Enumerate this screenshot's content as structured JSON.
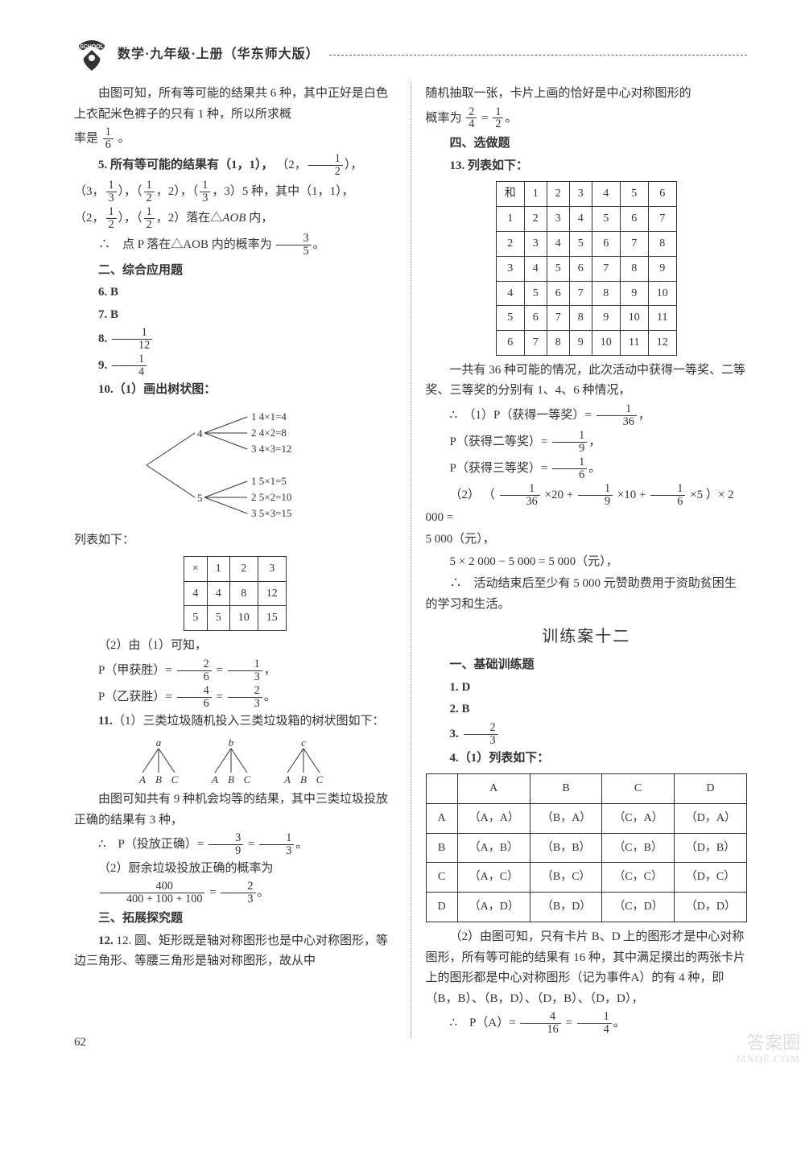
{
  "header": {
    "title": "数学·九年级·上册（华东师大版）"
  },
  "page_number": "62",
  "watermark": {
    "line1": "答案圈",
    "line2": "MXQE.COM"
  },
  "left": {
    "intro1": "由图可知，所有等可能的结果共 6 种，其中正好是白色上衣配米色裤子的只有 1 种，所以所求概",
    "intro2_prefix": "率是",
    "intro2_frac": {
      "n": "1",
      "d": "6"
    },
    "intro2_suffix": "。",
    "q5a": "5. 所有等可能的结果有（1，1），",
    "q5b_pairs": "（3，1/3），（1/2，2），（1/3，3）5 种，其中（1，1），",
    "q5c": "（2，1/2），（1/2，2）落在△AOB 内，",
    "q5_conclude_prefix": "∴　点 P 落在△AOB 内的概率为",
    "q5_conclude_frac": {
      "n": "3",
      "d": "5"
    },
    "sec2": "二、综合应用题",
    "q6": "6. B",
    "q7": "7. B",
    "q8_label": "8. ",
    "q8_frac": {
      "n": "1",
      "d": "12"
    },
    "q9_label": "9. ",
    "q9_frac": {
      "n": "1",
      "d": "4"
    },
    "q10": "10.（1）画出树状图：",
    "tree1": {
      "branch1": {
        "root": "4",
        "leaves": [
          "1  4×1=4",
          "2  4×2=8",
          "3  4×3=12"
        ]
      },
      "branch2": {
        "root": "5",
        "leaves": [
          "1  5×1=5",
          "2  5×2=10",
          "3  5×3=15"
        ]
      }
    },
    "tbl1_caption": "列表如下：",
    "tbl1": {
      "headers": [
        "×",
        "1",
        "2",
        "3"
      ],
      "rows": [
        [
          "4",
          "4",
          "8",
          "12"
        ],
        [
          "5",
          "5",
          "10",
          "15"
        ]
      ]
    },
    "q10_2": "（2）由（1）可知，",
    "p_jia_prefix": "P（甲获胜）= ",
    "p_jia_f1": {
      "n": "2",
      "d": "6"
    },
    "p_jia_f2": {
      "n": "1",
      "d": "3"
    },
    "p_yi_prefix": "P（乙获胜）= ",
    "p_yi_f1": {
      "n": "4",
      "d": "6"
    },
    "p_yi_f2": {
      "n": "2",
      "d": "3"
    },
    "q11a": "11.（1）三类垃圾随机投入三类垃圾箱的树状图如下：",
    "tree2": {
      "roots": [
        "a",
        "b",
        "c"
      ],
      "leaves": [
        "A",
        "B",
        "C"
      ]
    },
    "q11b": "由图可知共有 9 种机会均等的结果，其中三类垃圾投放正确的结果有 3 种，",
    "q11c_prefix": "∴　P（投放正确）= ",
    "q11c_f1": {
      "n": "3",
      "d": "9"
    },
    "q11c_f2": {
      "n": "1",
      "d": "3"
    },
    "q11d": "（2）厨余垃圾投放正确的概率为",
    "q11e_f1": {
      "n": "400",
      "d": "400 + 100 + 100"
    },
    "q11e_f2": {
      "n": "2",
      "d": "3"
    },
    "sec3": "三、拓展探究题",
    "q12": "12. 圆、矩形既是轴对称图形也是中心对称图形，等边三角形、等腰三角形是轴对称图形，故从中"
  },
  "right": {
    "p1a": "随机抽取一张，卡片上画的恰好是中心对称图形的",
    "p1b_prefix": "概率为",
    "p1b_f1": {
      "n": "2",
      "d": "4"
    },
    "p1b_f2": {
      "n": "1",
      "d": "2"
    },
    "sec4": "四、选做题",
    "q13": "13. 列表如下：",
    "tbl2": {
      "headers": [
        "和",
        "1",
        "2",
        "3",
        "4",
        "5",
        "6"
      ],
      "rows": [
        [
          "1",
          "2",
          "3",
          "4",
          "5",
          "6",
          "7"
        ],
        [
          "2",
          "3",
          "4",
          "5",
          "6",
          "7",
          "8"
        ],
        [
          "3",
          "4",
          "5",
          "6",
          "7",
          "8",
          "9"
        ],
        [
          "4",
          "5",
          "6",
          "7",
          "8",
          "9",
          "10"
        ],
        [
          "5",
          "6",
          "7",
          "8",
          "9",
          "10",
          "11"
        ],
        [
          "6",
          "7",
          "8",
          "9",
          "10",
          "11",
          "12"
        ]
      ]
    },
    "p2": "一共有 36 种可能的情况，此次活动中获得一等奖、二等奖、三等奖的分别有 1、4、6 种情况，",
    "p3a_prefix": "∴　（1）P（获得一等奖）= ",
    "p3a_frac": {
      "n": "1",
      "d": "36"
    },
    "p3b_prefix": "P（获得二等奖）= ",
    "p3b_frac": {
      "n": "1",
      "d": "9"
    },
    "p3c_prefix": "P（获得三等奖）= ",
    "p3c_frac": {
      "n": "1",
      "d": "6"
    },
    "p4_prefix": "（2）",
    "p4_open": "（",
    "p4_f1": {
      "n": "1",
      "d": "36"
    },
    "p4_t1": "×20 +",
    "p4_f2": {
      "n": "1",
      "d": "9"
    },
    "p4_t2": "×10 +",
    "p4_f3": {
      "n": "1",
      "d": "6"
    },
    "p4_t3": "×5",
    "p4_close": "）× 2 000 =",
    "p4_res": "5 000（元），",
    "p5": "5 × 2 000 − 5 000 = 5 000（元），",
    "p6": "∴　活动结束后至少有 5 000 元赞助费用于资助贫困生的学习和生活。",
    "big_title": "训练案十二",
    "secA": "一、基础训练题",
    "a1": "1. D",
    "a2": "2. B",
    "a3_label": "3. ",
    "a3_frac": {
      "n": "2",
      "d": "3"
    },
    "a4": "4.（1）列表如下：",
    "tbl3": {
      "headers": [
        "",
        "A",
        "B",
        "C",
        "D"
      ],
      "rows": [
        [
          "A",
          "（A，A）",
          "（B，A）",
          "（C，A）",
          "（D，A）"
        ],
        [
          "B",
          "（A，B）",
          "（B，B）",
          "（C，B）",
          "（D，B）"
        ],
        [
          "C",
          "（A，C）",
          "（B，C）",
          "（C，C）",
          "（D，C）"
        ],
        [
          "D",
          "（A，D）",
          "（B，D）",
          "（C，D）",
          "（D，D）"
        ]
      ]
    },
    "p7": "（2）由图可知，只有卡片 B、D 上的图形才是中心对称图形，所有等可能的结果有 16 种，其中满足摸出的两张卡片上的图形都是中心对称图形（记为事件A）的有 4 种，即（B，B）、（B，D）、（D，B）、（D，D），",
    "p8_prefix": "∴　P（A）= ",
    "p8_f1": {
      "n": "4",
      "d": "16"
    },
    "p8_f2": {
      "n": "1",
      "d": "4"
    }
  }
}
